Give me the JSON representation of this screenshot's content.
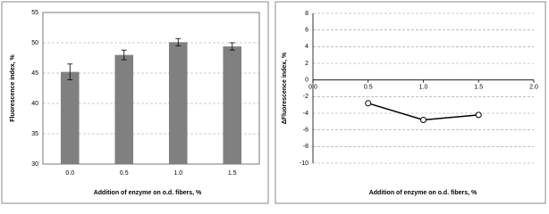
{
  "chart_data": [
    {
      "type": "bar",
      "xlabel": "Addition of enzyme on o.d. fibers, %",
      "ylabel": "Fluorescence index, %",
      "categories": [
        "0.0",
        "0.5",
        "1.0",
        "1.5"
      ],
      "values": [
        45.2,
        48.0,
        50.1,
        49.4
      ],
      "errors": [
        1.3,
        0.8,
        0.6,
        0.6
      ],
      "color": "#808080",
      "ylim": [
        30,
        55
      ],
      "yticks": [
        30,
        35,
        40,
        45,
        50,
        55
      ],
      "grid": true
    },
    {
      "type": "line",
      "xlabel": "Addition of enzyme on o.d. fibers, %",
      "ylabel": "ΔFluorescence index, %",
      "x": [
        0.5,
        1.0,
        1.5
      ],
      "values": [
        -2.8,
        -4.8,
        -4.2
      ],
      "color": "#000000",
      "xlim": [
        0,
        2
      ],
      "xticks": [
        {
          "value": 0,
          "label": "0.0"
        },
        {
          "value": 0.5,
          "label": "0.5"
        },
        {
          "value": 1,
          "label": "1.0"
        },
        {
          "value": 1.5,
          "label": "1.5"
        },
        {
          "value": 2,
          "label": "2.0"
        }
      ],
      "ylim": [
        -10,
        8
      ],
      "yticks": [
        -10,
        -8,
        -6,
        -4,
        -2,
        0,
        2,
        4,
        6,
        8
      ],
      "grid": true
    }
  ]
}
